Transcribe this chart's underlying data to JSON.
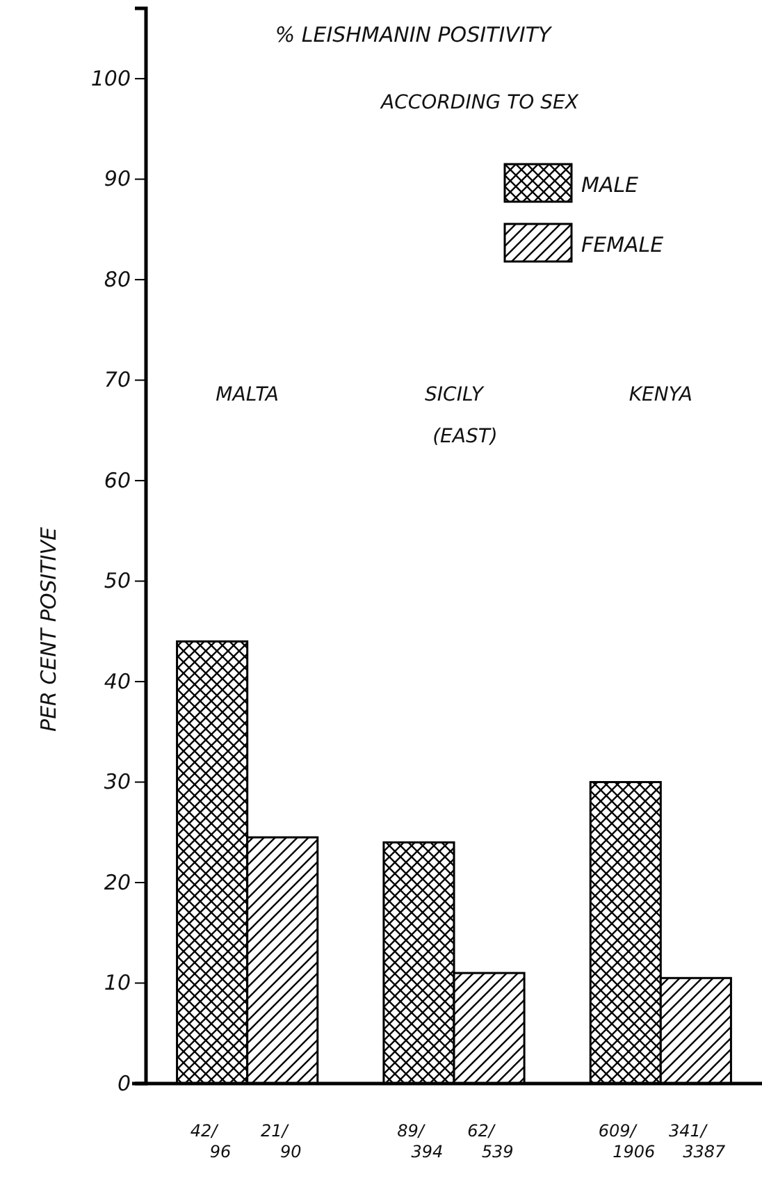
{
  "chart_data": {
    "type": "bar",
    "title": "% LEISHMANIN POSITIVITY",
    "subtitle": "ACCORDING TO SEX",
    "ylabel": "PER CENT POSITIVE",
    "categories": [
      "MALTA",
      "SICILY (EAST)",
      "KENYA"
    ],
    "series": [
      {
        "name": "MALE",
        "color": "#000000",
        "values": [
          44,
          24,
          30
        ],
        "value_labels": [
          "42/96",
          "89/394",
          "609/1906"
        ]
      },
      {
        "name": "FEMALE",
        "color": "#000000",
        "values": [
          24.5,
          11,
          10.5
        ],
        "value_labels": [
          "21/90",
          "62/539",
          "341/3387"
        ]
      }
    ],
    "ylim": [
      0,
      107
    ],
    "yticks": [
      0,
      10,
      20,
      30,
      40,
      50,
      60,
      70,
      80,
      90,
      100
    ],
    "legend": "top right"
  }
}
